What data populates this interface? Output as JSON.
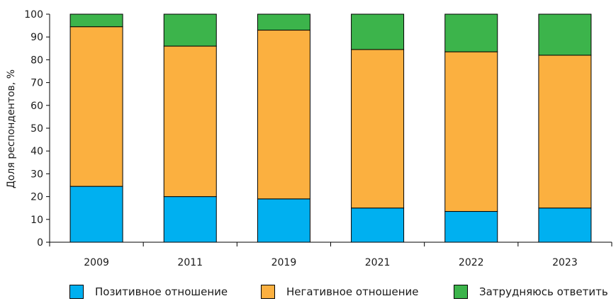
{
  "chart_data": {
    "type": "bar",
    "stacked": true,
    "categories": [
      "2009",
      "2011",
      "2019",
      "2021",
      "2022",
      "2023"
    ],
    "series": [
      {
        "name": "Позитивное отношение",
        "color": "#00b0f0",
        "values": [
          24.5,
          20,
          19,
          15,
          13.5,
          15
        ]
      },
      {
        "name": "Негативное отношение",
        "color": "#fbb040",
        "values": [
          70,
          66,
          74,
          69.5,
          70,
          67
        ]
      },
      {
        "name": "Затрудняюсь ответить",
        "color": "#3cb44b",
        "values": [
          5.5,
          14,
          7,
          15.5,
          16.5,
          18
        ]
      }
    ],
    "ylabel": "Доля респондентов, %",
    "xlabel": "",
    "ylim": [
      0,
      100
    ],
    "yticks": [
      0,
      10,
      20,
      30,
      40,
      50,
      60,
      70,
      80,
      90,
      100
    ],
    "grid": false,
    "legend_position": "bottom"
  }
}
